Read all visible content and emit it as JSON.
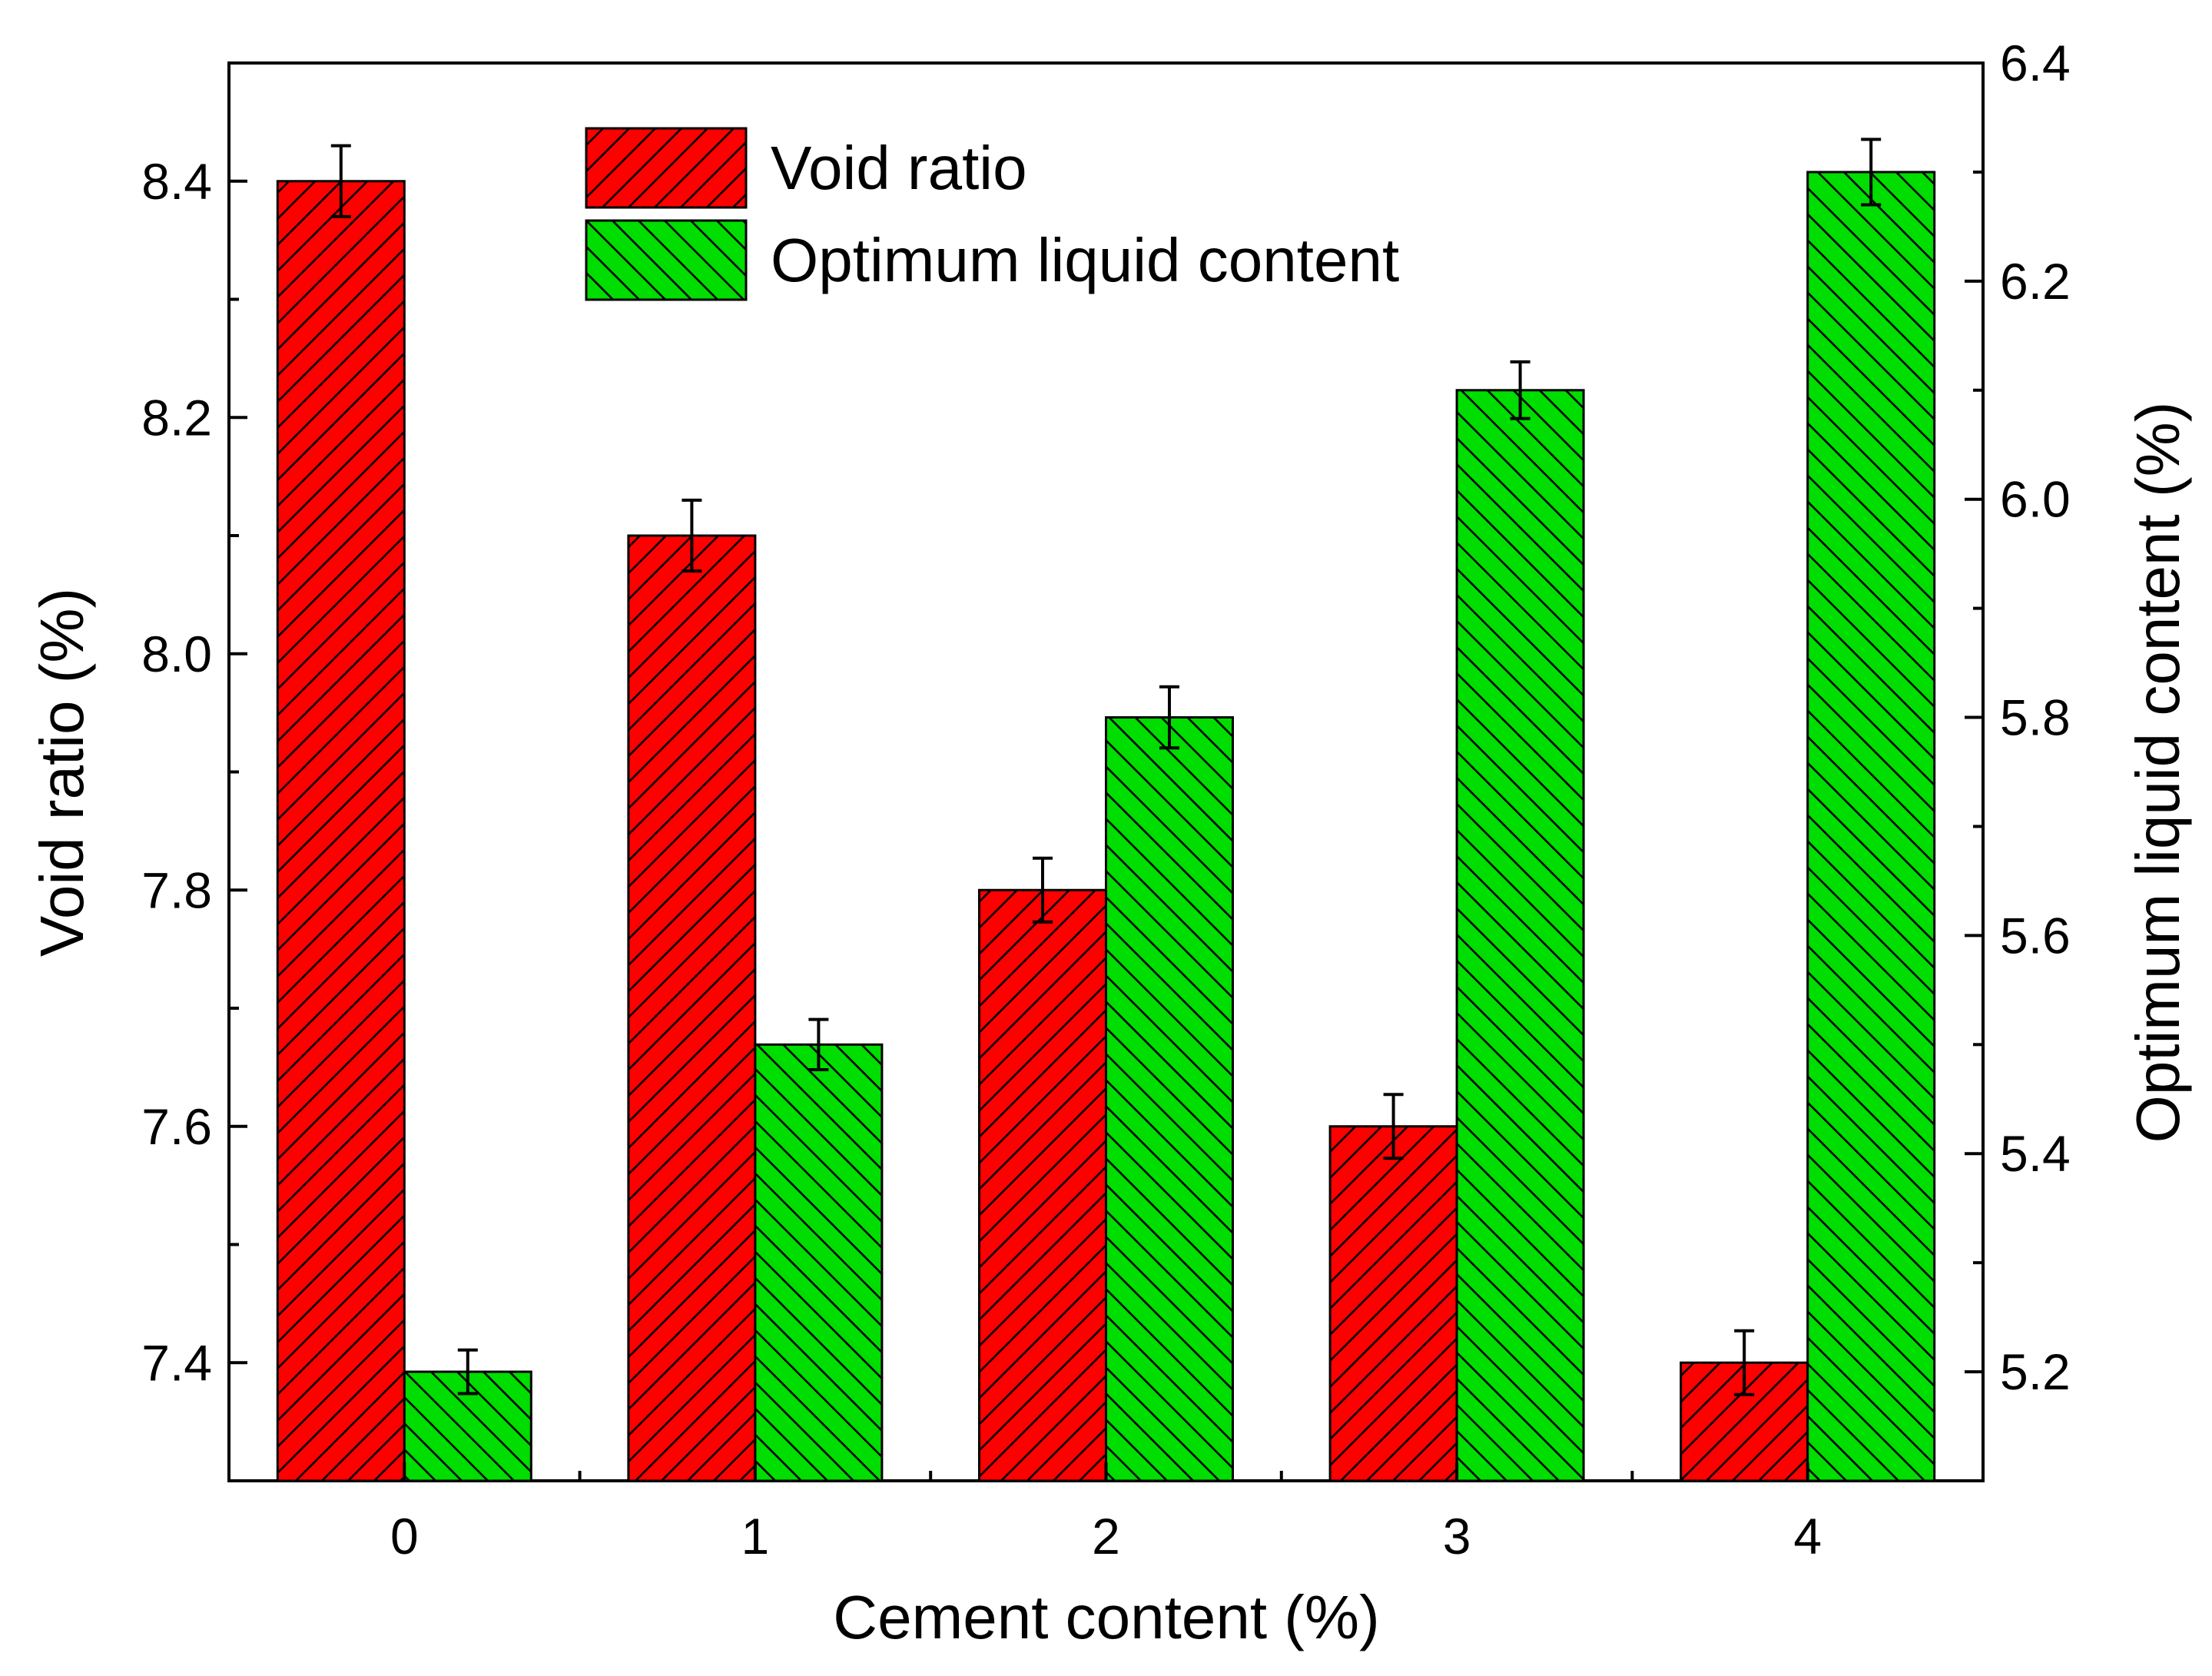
{
  "chart_data": {
    "type": "bar",
    "title": "",
    "xlabel": "Cement content (%)",
    "categories": [
      "0",
      "1",
      "2",
      "3",
      "4"
    ],
    "y_left": {
      "label": "Void ratio (%)",
      "range": [
        7.3,
        8.5
      ],
      "ticks": [
        7.4,
        7.6,
        7.8,
        8.0,
        8.2,
        8.4
      ],
      "tick_labels": [
        "7.4",
        "7.6",
        "7.8",
        "8.0",
        "8.2",
        "8.4"
      ]
    },
    "y_right": {
      "label": "Optimum liquid content (%)",
      "range": [
        5.1,
        6.4
      ],
      "ticks": [
        5.2,
        5.4,
        5.6,
        5.8,
        6.0,
        6.2,
        6.4
      ],
      "tick_labels": [
        "5.2",
        "5.4",
        "5.6",
        "5.8",
        "6.0",
        "6.2",
        "6.4"
      ]
    },
    "series": [
      {
        "name": "Void ratio",
        "axis": "left",
        "color": "#ff0000",
        "hatch": "forward",
        "values": [
          8.4,
          8.1,
          7.8,
          7.6,
          7.4
        ],
        "errors": [
          0.03,
          0.03,
          0.027,
          0.027,
          0.027
        ]
      },
      {
        "name": "Optimum liquid content",
        "axis": "right",
        "color": "#00dd00",
        "hatch": "backward",
        "values": [
          5.2,
          5.5,
          5.8,
          6.1,
          6.3
        ],
        "errors": [
          0.02,
          0.023,
          0.028,
          0.026,
          0.03
        ]
      }
    ],
    "legend": {
      "position": "top-center",
      "entries": [
        "Void ratio",
        "Optimum liquid content"
      ]
    },
    "grid": false
  }
}
